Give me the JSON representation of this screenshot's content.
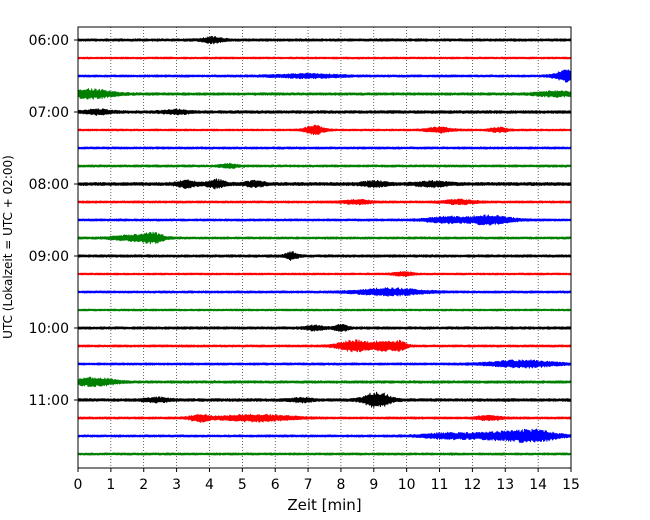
{
  "chart_data": {
    "type": "line",
    "title": "",
    "xlabel": "Zeit  [min]",
    "ylabel": "UTC (Lokalzeit = UTC + 02:00)",
    "xlim": [
      0,
      15
    ],
    "x_ticks": [
      0,
      1,
      2,
      3,
      4,
      5,
      6,
      7,
      8,
      9,
      10,
      11,
      12,
      13,
      14,
      15
    ],
    "grid": "vertical dotted",
    "y_tick_labels": [
      "06:00",
      "07:00",
      "08:00",
      "09:00",
      "10:00",
      "11:00"
    ],
    "trace_interval_minutes": 15,
    "colors": [
      "#000000",
      "#ff0000",
      "#0000ff",
      "#008000"
    ],
    "traces": [
      {
        "start": "06:00",
        "color": "#000000",
        "noise": 0.8,
        "events": [
          {
            "t": 4.1,
            "amp": 1.8,
            "w": 0.3
          }
        ]
      },
      {
        "start": "06:15",
        "color": "#ff0000",
        "noise": 0.6,
        "events": []
      },
      {
        "start": "06:30",
        "color": "#0000ff",
        "noise": 0.7,
        "events": [
          {
            "t": 7.0,
            "amp": 1.1,
            "w": 1.0
          },
          {
            "t": 14.9,
            "amp": 3.5,
            "w": 0.4
          }
        ]
      },
      {
        "start": "06:45",
        "color": "#008000",
        "noise": 0.8,
        "events": [
          {
            "t": 0.4,
            "amp": 2.8,
            "w": 0.7
          },
          {
            "t": 14.5,
            "amp": 1.5,
            "w": 0.6
          }
        ]
      },
      {
        "start": "07:00",
        "color": "#000000",
        "noise": 0.9,
        "events": [
          {
            "t": 0.6,
            "amp": 1.4,
            "w": 0.4
          },
          {
            "t": 3.0,
            "amp": 1.2,
            "w": 0.4
          }
        ]
      },
      {
        "start": "07:15",
        "color": "#ff0000",
        "noise": 0.6,
        "events": [
          {
            "t": 7.2,
            "amp": 3.0,
            "w": 0.3
          },
          {
            "t": 11.0,
            "amp": 1.6,
            "w": 0.4
          },
          {
            "t": 12.8,
            "amp": 1.3,
            "w": 0.3
          }
        ]
      },
      {
        "start": "07:30",
        "color": "#0000ff",
        "noise": 0.7,
        "events": []
      },
      {
        "start": "07:45",
        "color": "#008000",
        "noise": 0.7,
        "events": [
          {
            "t": 4.6,
            "amp": 1.1,
            "w": 0.3
          }
        ]
      },
      {
        "start": "08:00",
        "color": "#000000",
        "noise": 1.0,
        "events": [
          {
            "t": 3.3,
            "amp": 2.2,
            "w": 0.3
          },
          {
            "t": 4.2,
            "amp": 2.4,
            "w": 0.3
          },
          {
            "t": 5.4,
            "amp": 1.7,
            "w": 0.3
          },
          {
            "t": 9.0,
            "amp": 1.5,
            "w": 0.4
          },
          {
            "t": 10.8,
            "amp": 1.5,
            "w": 0.5
          }
        ]
      },
      {
        "start": "08:15",
        "color": "#ff0000",
        "noise": 0.7,
        "events": [
          {
            "t": 8.5,
            "amp": 1.3,
            "w": 0.4
          },
          {
            "t": 11.6,
            "amp": 1.3,
            "w": 0.5
          }
        ]
      },
      {
        "start": "08:30",
        "color": "#0000ff",
        "noise": 0.7,
        "events": [
          {
            "t": 11.2,
            "amp": 1.8,
            "w": 0.6
          },
          {
            "t": 12.5,
            "amp": 2.8,
            "w": 0.7
          }
        ]
      },
      {
        "start": "08:45",
        "color": "#008000",
        "noise": 0.7,
        "events": [
          {
            "t": 1.8,
            "amp": 1.8,
            "w": 0.7
          },
          {
            "t": 2.3,
            "amp": 2.2,
            "w": 0.3
          }
        ]
      },
      {
        "start": "09:00",
        "color": "#000000",
        "noise": 0.8,
        "events": [
          {
            "t": 6.5,
            "amp": 2.2,
            "w": 0.2
          }
        ]
      },
      {
        "start": "09:15",
        "color": "#ff0000",
        "noise": 0.6,
        "events": [
          {
            "t": 9.9,
            "amp": 1.2,
            "w": 0.3
          }
        ]
      },
      {
        "start": "09:30",
        "color": "#0000ff",
        "noise": 0.7,
        "events": [
          {
            "t": 9.5,
            "amp": 2.2,
            "w": 1.0
          }
        ]
      },
      {
        "start": "09:45",
        "color": "#008000",
        "noise": 0.6,
        "events": []
      },
      {
        "start": "10:00",
        "color": "#000000",
        "noise": 0.8,
        "events": [
          {
            "t": 7.2,
            "amp": 1.3,
            "w": 0.3
          },
          {
            "t": 8.0,
            "amp": 2.0,
            "w": 0.2
          }
        ]
      },
      {
        "start": "10:15",
        "color": "#ff0000",
        "noise": 0.7,
        "events": [
          {
            "t": 8.4,
            "amp": 3.5,
            "w": 0.5
          },
          {
            "t": 9.3,
            "amp": 3.0,
            "w": 0.4
          },
          {
            "t": 9.8,
            "amp": 2.6,
            "w": 0.2
          }
        ]
      },
      {
        "start": "10:30",
        "color": "#0000ff",
        "noise": 0.7,
        "events": [
          {
            "t": 13.5,
            "amp": 2.2,
            "w": 1.0
          }
        ]
      },
      {
        "start": "10:45",
        "color": "#008000",
        "noise": 0.8,
        "events": [
          {
            "t": 0.5,
            "amp": 2.6,
            "w": 0.6
          }
        ]
      },
      {
        "start": "11:00",
        "color": "#000000",
        "noise": 0.9,
        "events": [
          {
            "t": 9.1,
            "amp": 5.0,
            "w": 0.4
          },
          {
            "t": 6.8,
            "amp": 1.2,
            "w": 0.3
          },
          {
            "t": 2.4,
            "amp": 1.2,
            "w": 0.4
          }
        ]
      },
      {
        "start": "11:15",
        "color": "#ff0000",
        "noise": 0.7,
        "events": [
          {
            "t": 3.7,
            "amp": 2.2,
            "w": 0.3
          },
          {
            "t": 5.4,
            "amp": 2.0,
            "w": 1.1
          },
          {
            "t": 12.5,
            "amp": 1.3,
            "w": 0.4
          }
        ]
      },
      {
        "start": "11:30",
        "color": "#0000ff",
        "noise": 0.7,
        "events": [
          {
            "t": 11.3,
            "amp": 1.8,
            "w": 0.8
          },
          {
            "t": 12.8,
            "amp": 2.2,
            "w": 0.8
          },
          {
            "t": 13.9,
            "amp": 3.6,
            "w": 0.7
          }
        ]
      },
      {
        "start": "11:45",
        "color": "#008000",
        "noise": 0.7,
        "events": []
      }
    ]
  }
}
